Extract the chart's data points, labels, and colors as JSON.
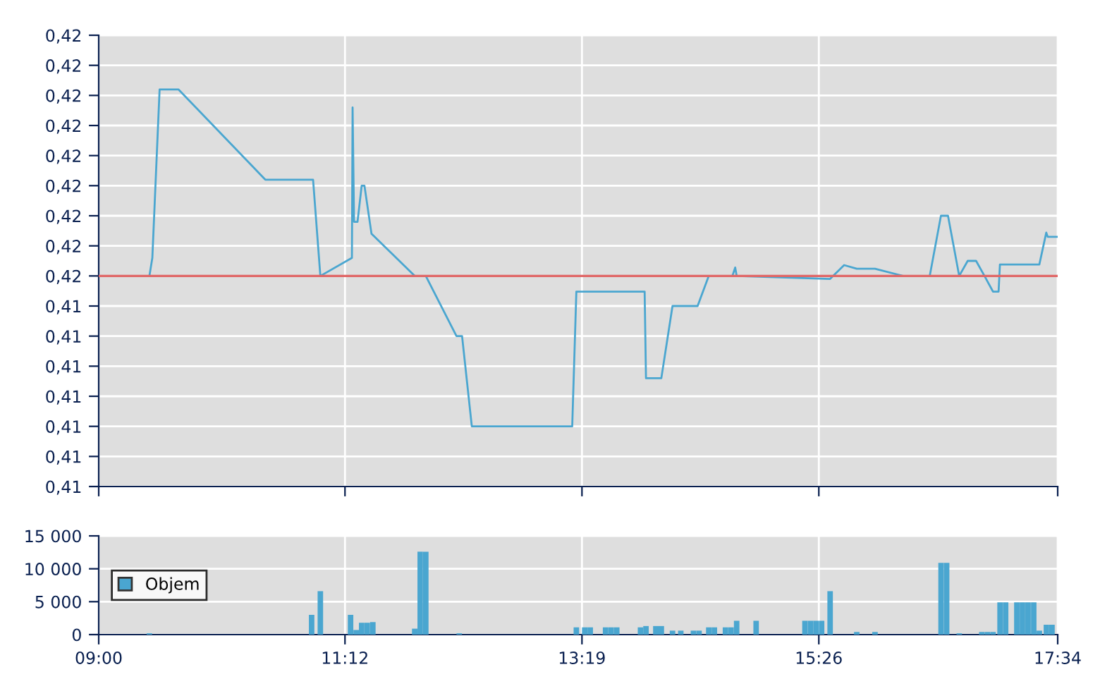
{
  "chart_data": [
    {
      "type": "line",
      "tick_labels": "y",
      "grid": true,
      "legend": false,
      "xlim": [
        9.0,
        17.567
      ],
      "xticks": [
        {
          "value": 9.0,
          "label": null
        },
        {
          "value": 11.2,
          "label": null
        },
        {
          "value": 13.317,
          "label": null
        },
        {
          "value": 15.433,
          "label": null
        },
        {
          "value": 17.567,
          "label": null
        }
      ],
      "ylim": [
        0.4115,
        0.419
      ],
      "yticks": [
        {
          "value": 0.4115,
          "label": "0,41"
        },
        {
          "value": 0.412,
          "label": "0,41"
        },
        {
          "value": 0.4125,
          "label": "0,41"
        },
        {
          "value": 0.413,
          "label": "0,41"
        },
        {
          "value": 0.4135,
          "label": "0,41"
        },
        {
          "value": 0.414,
          "label": "0,41"
        },
        {
          "value": 0.4145,
          "label": "0,41"
        },
        {
          "value": 0.415,
          "label": "0,42"
        },
        {
          "value": 0.4155,
          "label": "0,42"
        },
        {
          "value": 0.416,
          "label": "0,42"
        },
        {
          "value": 0.4165,
          "label": "0,42"
        },
        {
          "value": 0.417,
          "label": "0,42"
        },
        {
          "value": 0.4175,
          "label": "0,42"
        },
        {
          "value": 0.418,
          "label": "0,42"
        },
        {
          "value": 0.4185,
          "label": "0,42"
        },
        {
          "value": 0.419,
          "label": "0,42"
        }
      ],
      "ref_lines": [
        {
          "axis": "y",
          "value": 0.415,
          "color": "#e06666"
        }
      ],
      "series": [
        {
          "color": "#4aa6d0",
          "x": [
            9.0,
            9.453,
            9.479,
            9.544,
            9.712,
            10.488,
            10.915,
            10.98,
            11.262,
            11.268,
            11.281,
            11.312,
            11.349,
            11.374,
            11.437,
            11.823,
            11.922,
            12.196,
            12.246,
            12.333,
            13.23,
            13.267,
            13.877,
            13.889,
            14.026,
            14.126,
            14.35,
            14.45,
            14.661,
            14.686,
            14.699,
            15.534,
            15.659,
            15.772,
            15.935,
            16.186,
            16.424,
            16.524,
            16.587,
            16.687,
            16.763,
            16.838,
            16.913,
            16.989,
            17.039,
            17.051,
            17.403,
            17.465,
            17.478,
            17.567
          ],
          "values": [
            0.415,
            0.415,
            0.4153,
            0.4181,
            0.4181,
            0.4166,
            0.4166,
            0.415,
            0.4153,
            0.4178,
            0.4159,
            0.4159,
            0.4165,
            0.4165,
            0.4157,
            0.415,
            0.415,
            0.414,
            0.414,
            0.4125,
            0.4125,
            0.41474,
            0.41474,
            0.4133,
            0.4133,
            0.4145,
            0.4145,
            0.415,
            0.415,
            0.41514,
            0.415,
            0.41495,
            0.41518,
            0.41512,
            0.41512,
            0.415,
            0.415,
            0.416,
            0.416,
            0.415,
            0.41525,
            0.41525,
            0.415,
            0.41474,
            0.41474,
            0.41519,
            0.41519,
            0.41572,
            0.41565,
            0.41565
          ]
        }
      ]
    },
    {
      "type": "bar",
      "grid": true,
      "legend": "center left",
      "xlim": [
        9.0,
        17.567
      ],
      "xticks": [
        {
          "value": 9.0,
          "label": "09:00"
        },
        {
          "value": 11.2,
          "label": "11:12"
        },
        {
          "value": 13.317,
          "label": "13:19"
        },
        {
          "value": 15.433,
          "label": "15:26"
        },
        {
          "value": 17.567,
          "label": "17:34"
        }
      ],
      "ylim": [
        0,
        15000
      ],
      "yticks": [
        0,
        {
          "value": 5000,
          "label": "5 000"
        },
        {
          "value": 10000,
          "label": "10 000"
        },
        {
          "value": 15000,
          "label": "15 000"
        }
      ],
      "series": [
        {
          "name": "Objem",
          "color": "#4aa6d0",
          "x": [
            9.453,
            10.902,
            10.98,
            11.25,
            11.3,
            11.349,
            11.399,
            11.449,
            11.823,
            11.872,
            11.922,
            12.221,
            13.267,
            13.342,
            13.391,
            13.528,
            13.578,
            13.628,
            13.84,
            13.889,
            13.977,
            14.026,
            14.126,
            14.2,
            14.313,
            14.363,
            14.45,
            14.5,
            14.599,
            14.649,
            14.699,
            14.873,
            15.309,
            15.359,
            15.408,
            15.458,
            15.534,
            15.772,
            15.935,
            16.525,
            16.575,
            16.688,
            16.889,
            16.939,
            16.989,
            17.052,
            17.102,
            17.202,
            17.252,
            17.302,
            17.353,
            17.403,
            17.466,
            17.516
          ],
          "values": [
            200,
            3000,
            6600,
            3000,
            700,
            1800,
            1800,
            1900,
            900,
            12600,
            12600,
            200,
            1100,
            1100,
            1100,
            1100,
            1100,
            1100,
            1100,
            1300,
            1300,
            1300,
            600,
            600,
            600,
            600,
            1100,
            1100,
            1100,
            1100,
            2100,
            2100,
            2100,
            2100,
            2100,
            2100,
            6600,
            400,
            400,
            10900,
            10900,
            200,
            400,
            400,
            400,
            4900,
            4900,
            4900,
            4900,
            4900,
            4900,
            600,
            1500,
            1500
          ]
        }
      ]
    }
  ]
}
